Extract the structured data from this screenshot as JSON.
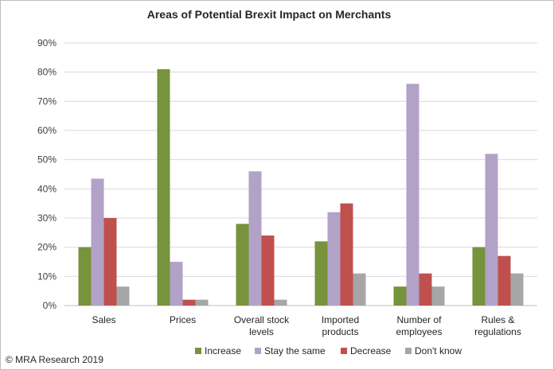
{
  "chart_data": {
    "type": "bar",
    "title": "Areas of Potential Brexit Impact on Merchants",
    "categories": [
      [
        "Sales"
      ],
      [
        "Prices"
      ],
      [
        "Overall stock",
        "levels"
      ],
      [
        "Imported",
        "products"
      ],
      [
        "Number of",
        "employees"
      ],
      [
        "Rules &",
        "regulations"
      ]
    ],
    "series": [
      {
        "name": "Increase",
        "color": "#77933C",
        "values": [
          20,
          81,
          28,
          22,
          6.5,
          20
        ]
      },
      {
        "name": "Stay the same",
        "color": "#B3A2C7",
        "values": [
          43.5,
          15,
          46,
          32,
          76,
          52
        ]
      },
      {
        "name": "Decrease",
        "color": "#C0504D",
        "values": [
          30,
          2,
          24,
          35,
          11,
          17
        ]
      },
      {
        "name": "Don't know",
        "color": "#A6A6A6",
        "values": [
          6.5,
          2,
          2,
          11,
          6.5,
          11
        ]
      }
    ],
    "ylim": [
      0,
      90
    ],
    "yticks": [
      0,
      10,
      20,
      30,
      40,
      50,
      60,
      70,
      80,
      90
    ],
    "ytick_labels": [
      "0%",
      "10%",
      "20%",
      "30%",
      "40%",
      "50%",
      "60%",
      "70%",
      "80%",
      "90%"
    ],
    "grid": true,
    "legend_position": "bottom"
  },
  "credit": "© MRA Research 2019"
}
